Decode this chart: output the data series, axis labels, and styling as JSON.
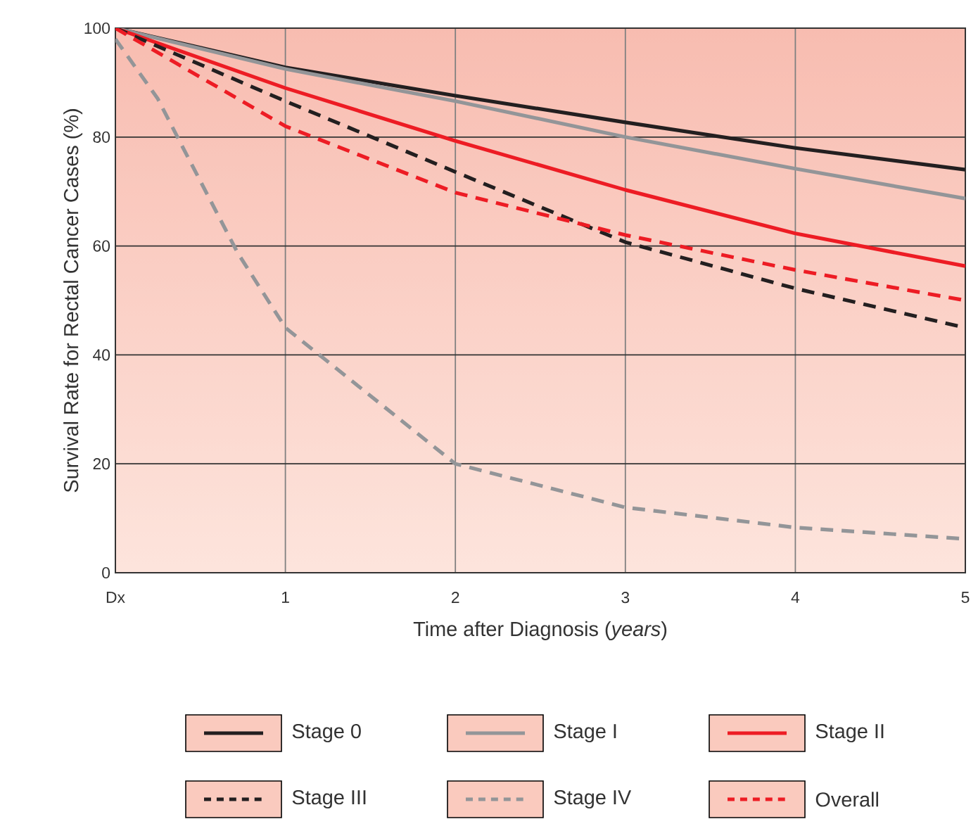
{
  "chart_data": {
    "type": "line",
    "xlabel": "Time after Diagnosis (*years*)",
    "ylabel": "Survival Rate for Rectal Cancer Cases (%)",
    "x": [
      0,
      1,
      2,
      3,
      4,
      5
    ],
    "xlim": [
      0,
      5
    ],
    "xticks": [
      {
        "value": 0,
        "label": "Dx"
      },
      1,
      2,
      3,
      4,
      5
    ],
    "ylim": [
      0,
      100
    ],
    "yticks": [
      0,
      20,
      40,
      60,
      80,
      100
    ],
    "grid": true,
    "legend": "bottom",
    "marker": "none",
    "series": [
      {
        "name": "Stage 0",
        "color": "#231f20",
        "line_style": "solid",
        "values": [
          100,
          92.8,
          87.6,
          82.7,
          78,
          74
        ]
      },
      {
        "name": "Stage I",
        "color": "#939598",
        "line_style": "solid",
        "values": [
          100,
          92.5,
          86.6,
          80,
          74.2,
          68.7
        ]
      },
      {
        "name": "Stage II",
        "color": "#ed1c24",
        "line_style": "solid",
        "values": [
          100,
          89,
          79.3,
          70.3,
          62.3,
          56.3
        ]
      },
      {
        "name": "Stage III",
        "color": "#231f20",
        "line_style": "dashed",
        "values": [
          100,
          86.6,
          73.6,
          60.7,
          52.2,
          45
        ]
      },
      {
        "name": "Stage IV",
        "color": "#939598",
        "line_style": "dashed",
        "x": [
          0,
          0.25,
          0.39,
          0.72,
          1,
          2,
          3,
          4,
          5
        ],
        "values": [
          98,
          87,
          78.5,
          58.7,
          45,
          20,
          12,
          8.3,
          6.2
        ]
      },
      {
        "name": "Overall",
        "color": "#ed1c24",
        "line_style": "dashed",
        "values": [
          100,
          82,
          69.8,
          62,
          55.6,
          50
        ]
      }
    ]
  }
}
